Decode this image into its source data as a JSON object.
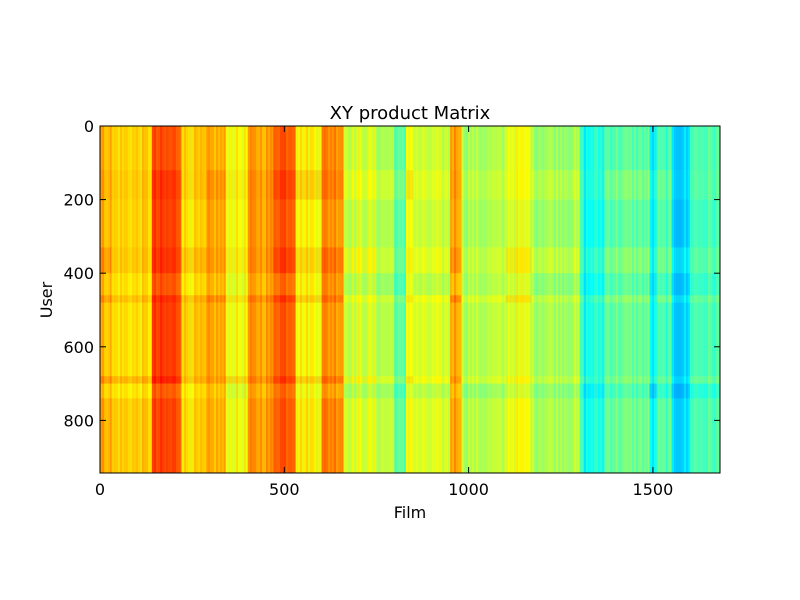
{
  "chart_data": {
    "type": "heatmap",
    "title": "XY product Matrix",
    "xlabel": "Film",
    "ylabel": "User",
    "xlim": [
      0,
      1682
    ],
    "ylim": [
      943,
      0
    ],
    "x_ticks": [
      "0",
      "500",
      "1000",
      "1500"
    ],
    "y_ticks": [
      "0",
      "200",
      "400",
      "600",
      "800"
    ],
    "colormap": "jet",
    "grid": false,
    "column_bands": [
      {
        "x0": 0,
        "x1": 30,
        "level": 0.7
      },
      {
        "x0": 30,
        "x1": 140,
        "level": 0.66
      },
      {
        "x0": 140,
        "x1": 220,
        "level": 0.8
      },
      {
        "x0": 220,
        "x1": 290,
        "level": 0.66
      },
      {
        "x0": 290,
        "x1": 340,
        "level": 0.7
      },
      {
        "x0": 340,
        "x1": 400,
        "level": 0.62
      },
      {
        "x0": 400,
        "x1": 470,
        "level": 0.72
      },
      {
        "x0": 470,
        "x1": 530,
        "level": 0.8
      },
      {
        "x0": 530,
        "x1": 600,
        "level": 0.64
      },
      {
        "x0": 600,
        "x1": 660,
        "level": 0.74
      },
      {
        "x0": 660,
        "x1": 750,
        "level": 0.58
      },
      {
        "x0": 750,
        "x1": 800,
        "level": 0.55
      },
      {
        "x0": 800,
        "x1": 830,
        "level": 0.45
      },
      {
        "x0": 830,
        "x1": 850,
        "level": 0.62
      },
      {
        "x0": 850,
        "x1": 950,
        "level": 0.57
      },
      {
        "x0": 950,
        "x1": 980,
        "level": 0.72
      },
      {
        "x0": 980,
        "x1": 1100,
        "level": 0.55
      },
      {
        "x0": 1100,
        "x1": 1170,
        "level": 0.6
      },
      {
        "x0": 1170,
        "x1": 1300,
        "level": 0.54
      },
      {
        "x0": 1300,
        "x1": 1310,
        "level": 0.44
      },
      {
        "x0": 1310,
        "x1": 1330,
        "level": 0.38
      },
      {
        "x0": 1330,
        "x1": 1370,
        "level": 0.4
      },
      {
        "x0": 1370,
        "x1": 1490,
        "level": 0.47
      },
      {
        "x0": 1490,
        "x1": 1510,
        "level": 0.36
      },
      {
        "x0": 1510,
        "x1": 1550,
        "level": 0.44
      },
      {
        "x0": 1550,
        "x1": 1600,
        "level": 0.33
      },
      {
        "x0": 1600,
        "x1": 1682,
        "level": 0.45
      }
    ],
    "row_bands": [
      {
        "y0": 0,
        "y1": 120,
        "offset": 0.0
      },
      {
        "y0": 120,
        "y1": 200,
        "offset": 0.03
      },
      {
        "y0": 200,
        "y1": 330,
        "offset": 0.0
      },
      {
        "y0": 330,
        "y1": 400,
        "offset": 0.04
      },
      {
        "y0": 400,
        "y1": 460,
        "offset": -0.02
      },
      {
        "y0": 460,
        "y1": 480,
        "offset": 0.05
      },
      {
        "y0": 480,
        "y1": 680,
        "offset": 0.0
      },
      {
        "y0": 680,
        "y1": 700,
        "offset": 0.05
      },
      {
        "y0": 700,
        "y1": 740,
        "offset": -0.04
      },
      {
        "y0": 740,
        "y1": 943,
        "offset": 0.01
      }
    ]
  }
}
